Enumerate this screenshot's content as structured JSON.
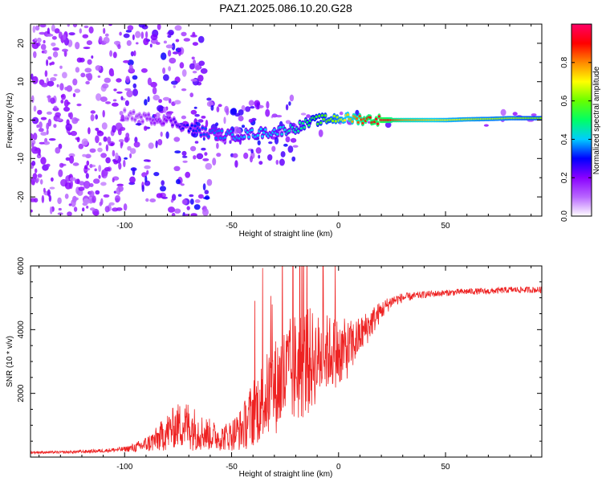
{
  "title": "PAZ1.2025.086.10.20.G28",
  "chart_data": [
    {
      "type": "heatmap",
      "xlabel": "Height of straight line (km)",
      "ylabel": "Frequency (Hz)",
      "xlim": [
        -144,
        95
      ],
      "ylim": [
        -25,
        25
      ],
      "xticks": [
        -100,
        -50,
        0,
        50
      ],
      "yticks": [
        -20,
        -10,
        0,
        10,
        20
      ],
      "grid": false,
      "colorbar": {
        "label": "Normalized spectral amplitude",
        "range": [
          0,
          1
        ],
        "ticks": [
          "0.0",
          "0.2",
          "0.4",
          "0.6",
          "0.8"
        ],
        "colors": [
          "#ffffff",
          "#b866ff",
          "#8a00ff",
          "#0000ff",
          "#00ccff",
          "#00ff66",
          "#66ff00",
          "#ffff00",
          "#ff8800",
          "#ff0000",
          "#ff0066"
        ]
      },
      "ridge": {
        "x": [
          -100,
          -90,
          -80,
          -70,
          -60,
          -50,
          -40,
          -30,
          -20,
          -10,
          0,
          10,
          20,
          30,
          40,
          50,
          60,
          70,
          80,
          90
        ],
        "frequency": [
          1.5,
          0.5,
          0,
          -2,
          -3.5,
          -4,
          -3.5,
          -3,
          -2,
          0,
          0.5,
          0.3,
          0,
          0,
          0,
          0,
          0.2,
          0.3,
          0.5,
          0.5
        ],
        "amplitude": [
          0.12,
          0.15,
          0.2,
          0.3,
          0.35,
          0.38,
          0.4,
          0.4,
          0.45,
          0.55,
          0.65,
          0.85,
          0.95,
          0.8,
          0.75,
          0.7,
          0.68,
          0.66,
          0.65,
          0.62
        ]
      }
    },
    {
      "type": "line",
      "xlabel": "Height of straight line (km)",
      "ylabel": "SNR (10 * v/v)",
      "xlim": [
        -144,
        95
      ],
      "ylim": [
        0,
        6000
      ],
      "xticks": [
        -100,
        -50,
        0,
        50
      ],
      "yticks": [
        2000,
        4000,
        6000
      ],
      "grid": false,
      "series": [
        {
          "color": "#ee2222",
          "x": [
            -144,
            -130,
            -120,
            -110,
            -100,
            -95,
            -90,
            -85,
            -80,
            -75,
            -70,
            -65,
            -60,
            -55,
            -50,
            -45,
            -40,
            -35,
            -30,
            -25,
            -20,
            -15,
            -10,
            -5,
            0,
            5,
            10,
            15,
            20,
            25,
            30,
            35,
            40,
            50,
            60,
            70,
            80,
            90,
            95
          ],
          "y": [
            150,
            150,
            170,
            200,
            250,
            300,
            400,
            550,
            800,
            1000,
            1000,
            800,
            700,
            600,
            700,
            900,
            1400,
            1800,
            2200,
            2500,
            2800,
            3000,
            3100,
            3300,
            3300,
            3400,
            3800,
            4200,
            4600,
            4900,
            5000,
            5050,
            5100,
            5150,
            5200,
            5200,
            5250,
            5250,
            5250
          ],
          "noise": [
            40,
            40,
            50,
            60,
            80,
            150,
            250,
            400,
            600,
            700,
            800,
            600,
            500,
            400,
            500,
            700,
            1100,
            1300,
            1500,
            1700,
            1800,
            1800,
            1400,
            1200,
            1100,
            900,
            600,
            500,
            300,
            200,
            150,
            120,
            110,
            100,
            100,
            100,
            100,
            100,
            100
          ]
        }
      ]
    }
  ]
}
